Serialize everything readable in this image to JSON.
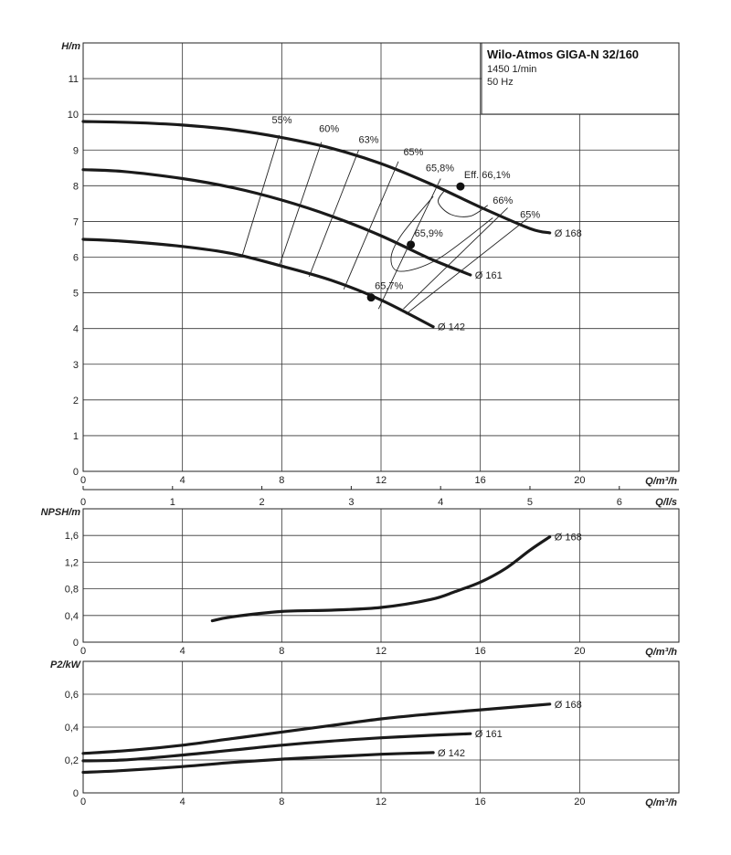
{
  "title": {
    "name": "Wilo-Atmos GIGA-N 32/160",
    "speed": "1450 1/min",
    "frequency": "50 Hz"
  },
  "chart_data": [
    {
      "type": "line",
      "panel": "head",
      "ylabel": "H/m",
      "xlabel": "Q/m³/h",
      "xlim": [
        0,
        24
      ],
      "ylim": [
        0,
        12
      ],
      "x_ticks": [
        "0",
        "4",
        "8",
        "12",
        "16",
        "20"
      ],
      "y_ticks": [
        "0",
        "1",
        "2",
        "3",
        "4",
        "5",
        "6",
        "7",
        "8",
        "9",
        "10",
        "11"
      ],
      "grid": true,
      "secondary_x_axis": {
        "label": "Q/l/s",
        "lim": [
          0,
          6.667
        ],
        "ticks": [
          "0",
          "1",
          "2",
          "3",
          "4",
          "5",
          "6"
        ]
      },
      "series": [
        {
          "name": "Ø 168",
          "x": [
            0,
            2,
            4,
            6,
            8,
            10,
            12,
            14,
            16,
            18,
            18.8
          ],
          "y": [
            9.8,
            9.77,
            9.7,
            9.57,
            9.35,
            9.05,
            8.62,
            8.05,
            7.4,
            6.8,
            6.68
          ]
        },
        {
          "name": "Ø 161",
          "x": [
            0,
            1.6,
            4,
            6,
            8,
            10,
            12,
            14,
            15.6
          ],
          "y": [
            8.45,
            8.4,
            8.2,
            7.95,
            7.6,
            7.15,
            6.6,
            5.95,
            5.5
          ]
        },
        {
          "name": "Ø 142",
          "x": [
            0,
            1.5,
            4,
            6,
            8,
            10,
            12,
            14.1
          ],
          "y": [
            6.5,
            6.45,
            6.3,
            6.1,
            5.75,
            5.35,
            4.8,
            4.05
          ]
        }
      ],
      "efficiency_points": [
        {
          "label": "Eff. 66,1%",
          "x": 15.2,
          "y": 7.98
        },
        {
          "label": "65,9%",
          "x": 13.2,
          "y": 6.35
        },
        {
          "label": "65,7%",
          "x": 11.6,
          "y": 4.87
        }
      ],
      "efficiency_labels": [
        "55%",
        "60%",
        "63%",
        "65%",
        "65,8%",
        "66%",
        "65%"
      ]
    },
    {
      "type": "line",
      "panel": "npsh",
      "ylabel": "NPSH/m",
      "xlabel": "Q/m³/h",
      "xlim": [
        0,
        24
      ],
      "ylim": [
        0,
        2.0
      ],
      "x_ticks": [
        "0",
        "4",
        "8",
        "12",
        "16",
        "20"
      ],
      "y_ticks": [
        "0",
        "0,4",
        "0,8",
        "1,2",
        "1,6"
      ],
      "grid": true,
      "series": [
        {
          "name": "Ø 168",
          "x": [
            5.2,
            6,
            8,
            10,
            12,
            14,
            15,
            16,
            17,
            18,
            18.8
          ],
          "y": [
            0.32,
            0.38,
            0.46,
            0.48,
            0.52,
            0.64,
            0.76,
            0.9,
            1.1,
            1.38,
            1.58
          ]
        }
      ]
    },
    {
      "type": "line",
      "panel": "power",
      "ylabel": "P2/kW",
      "xlabel": "Q/m³/h",
      "xlim": [
        0,
        24
      ],
      "ylim": [
        0,
        0.8
      ],
      "x_ticks": [
        "0",
        "4",
        "8",
        "12",
        "16",
        "20"
      ],
      "y_ticks": [
        "0",
        "0,2",
        "0,4",
        "0,6"
      ],
      "grid": true,
      "series": [
        {
          "name": "Ø 168",
          "x": [
            0,
            2,
            4,
            6,
            8,
            10,
            12,
            14,
            16,
            18,
            18.8
          ],
          "y": [
            0.24,
            0.26,
            0.29,
            0.33,
            0.37,
            0.41,
            0.45,
            0.48,
            0.505,
            0.53,
            0.54
          ]
        },
        {
          "name": "Ø 161",
          "x": [
            0,
            1.6,
            4,
            6,
            8,
            10,
            12,
            14,
            15.6
          ],
          "y": [
            0.195,
            0.2,
            0.23,
            0.26,
            0.29,
            0.315,
            0.335,
            0.35,
            0.36
          ]
        },
        {
          "name": "Ø 142",
          "x": [
            0,
            1.5,
            4,
            6,
            8,
            10,
            12,
            14.1
          ],
          "y": [
            0.125,
            0.135,
            0.16,
            0.185,
            0.205,
            0.22,
            0.235,
            0.245
          ]
        }
      ]
    }
  ]
}
